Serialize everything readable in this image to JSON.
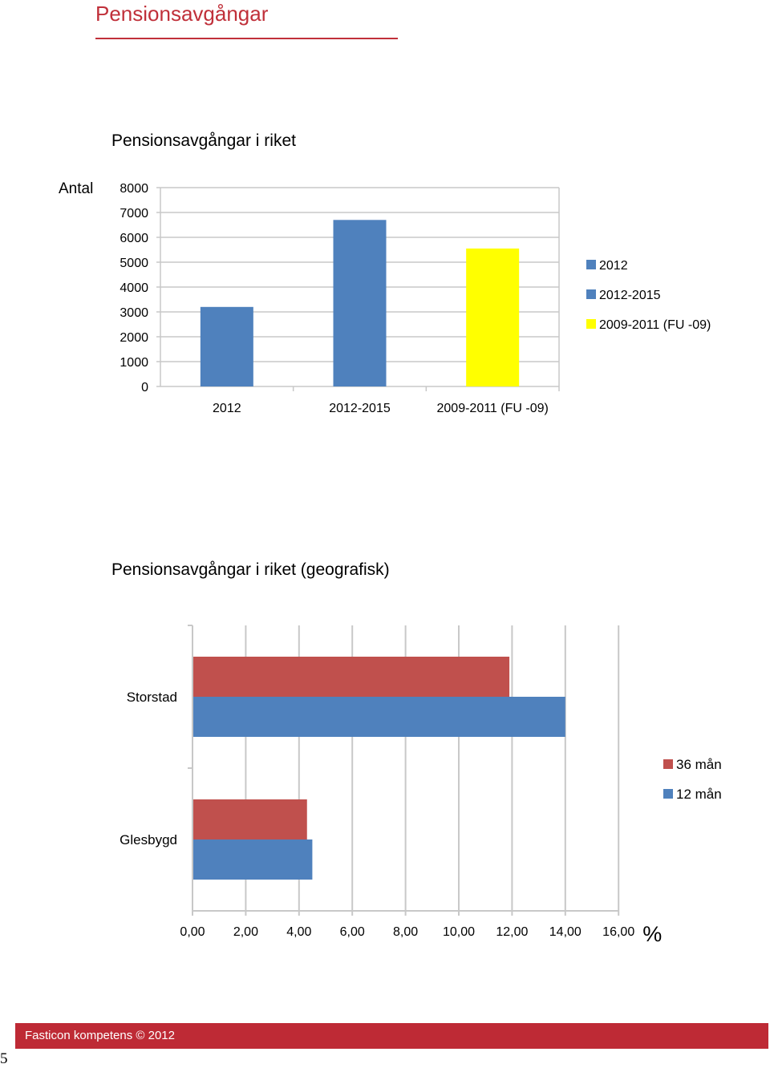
{
  "page": {
    "heading": "Pensionsavgångar",
    "footer": "Fasticon kompetens © 2012",
    "page_number": "5",
    "accent_color": "#c0303a"
  },
  "chart_data": [
    {
      "type": "bar",
      "title": "Pensionsavgångar i riket",
      "ylabel": "Antal",
      "xlabel": "",
      "ylim": [
        0,
        8000
      ],
      "yticks": [
        "0",
        "1000",
        "2000",
        "3000",
        "4000",
        "5000",
        "6000",
        "7000",
        "8000"
      ],
      "categories": [
        "2012",
        "2012-2015",
        "2009-2011 (FU -09)"
      ],
      "values": [
        3200,
        6700,
        5550
      ],
      "colors": [
        "#4f81bd",
        "#4f81bd",
        "#ffff00"
      ],
      "legend": {
        "position": "right",
        "entries": [
          {
            "label": "2012",
            "color": "#4f81bd"
          },
          {
            "label": "2012-2015",
            "color": "#4f81bd"
          },
          {
            "label": "2009-2011 (FU -09)",
            "color": "#ffff00"
          }
        ]
      },
      "grid": true
    },
    {
      "type": "bar",
      "orientation": "horizontal",
      "title": "Pensionsavgångar i riket (geografisk)",
      "xlabel": "%",
      "xlim": [
        0,
        16
      ],
      "xticks": [
        "0,00",
        "2,00",
        "4,00",
        "6,00",
        "8,00",
        "10,00",
        "12,00",
        "14,00",
        "16,00"
      ],
      "categories": [
        "Storstad",
        "Glesbygd"
      ],
      "series": [
        {
          "name": "36 mån",
          "color": "#c0504d",
          "values": [
            11.9,
            4.3
          ]
        },
        {
          "name": "12 mån",
          "color": "#4f81bd",
          "values": [
            14.0,
            4.5
          ]
        }
      ],
      "legend": {
        "position": "right"
      },
      "grid": true
    }
  ]
}
